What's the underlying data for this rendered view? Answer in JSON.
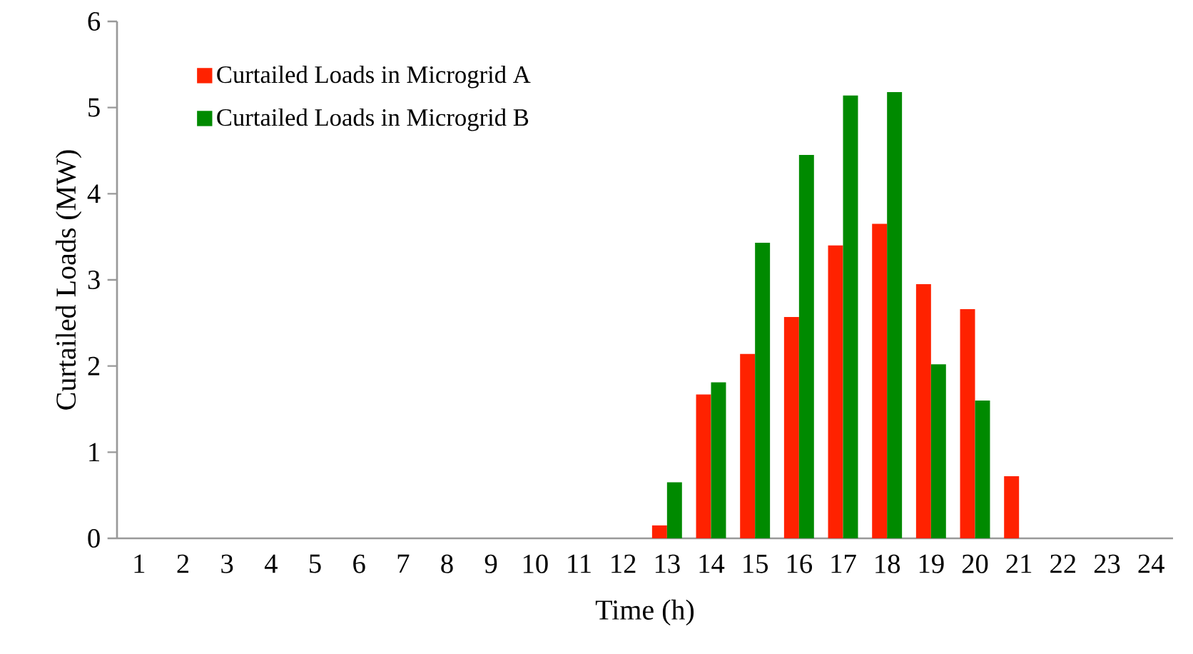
{
  "chart_data": {
    "type": "bar",
    "xlabel": "Time (h)",
    "ylabel": "Curtailed Loads (MW)",
    "categories": [
      "1",
      "2",
      "3",
      "4",
      "5",
      "6",
      "7",
      "8",
      "9",
      "10",
      "11",
      "12",
      "13",
      "14",
      "15",
      "16",
      "17",
      "18",
      "19",
      "20",
      "21",
      "22",
      "23",
      "24"
    ],
    "series": [
      {
        "name": "Curtailed Loads in Microgrid A",
        "color": "#ff2200",
        "values": [
          0,
          0,
          0,
          0,
          0,
          0,
          0,
          0,
          0,
          0,
          0,
          0,
          0.15,
          1.67,
          2.14,
          2.57,
          3.4,
          3.65,
          2.95,
          2.66,
          0.72,
          0,
          0,
          0
        ]
      },
      {
        "name": "Curtailed Loads in Microgrid B",
        "color": "#008a00",
        "values": [
          0,
          0,
          0,
          0,
          0,
          0,
          0,
          0,
          0,
          0,
          0,
          0,
          0.65,
          1.81,
          3.43,
          4.45,
          5.14,
          5.18,
          2.02,
          1.6,
          0,
          0,
          0,
          0
        ]
      }
    ],
    "ylim": [
      0,
      6
    ],
    "yticks": [
      0,
      1,
      2,
      3,
      4,
      5,
      6
    ],
    "grid": false,
    "legend": "top left"
  }
}
